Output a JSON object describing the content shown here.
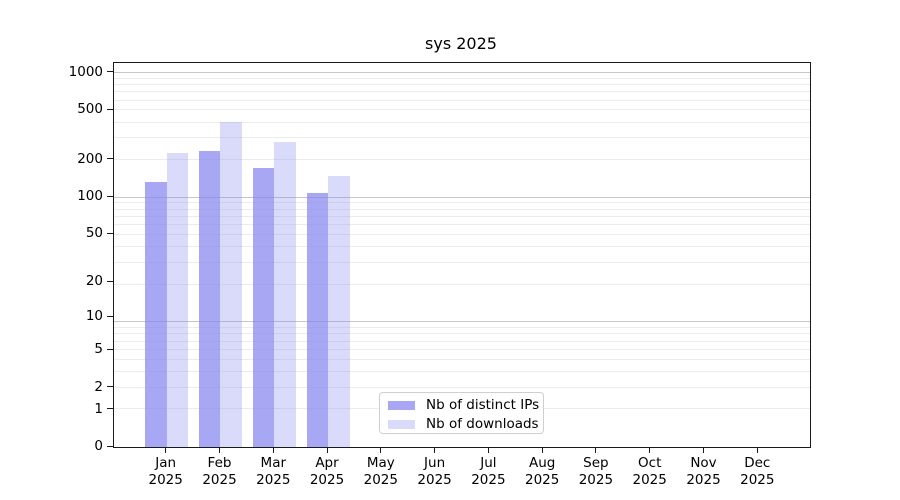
{
  "chart_data": {
    "type": "bar",
    "title": "sys 2025",
    "scale": "log1p",
    "categories": [
      [
        "Jan",
        "2025"
      ],
      [
        "Feb",
        "2025"
      ],
      [
        "Mar",
        "2025"
      ],
      [
        "Apr",
        "2025"
      ],
      [
        "May",
        "2025"
      ],
      [
        "Jun",
        "2025"
      ],
      [
        "Jul",
        "2025"
      ],
      [
        "Aug",
        "2025"
      ],
      [
        "Sep",
        "2025"
      ],
      [
        "Oct",
        "2025"
      ],
      [
        "Nov",
        "2025"
      ],
      [
        "Dec",
        "2025"
      ]
    ],
    "series": [
      {
        "name": "Nb of distinct IPs",
        "values": [
          132,
          234,
          172,
          109,
          null,
          null,
          null,
          null,
          null,
          null,
          null,
          null
        ]
      },
      {
        "name": "Nb of downloads",
        "values": [
          228,
          404,
          279,
          148,
          null,
          null,
          null,
          null,
          null,
          null,
          null,
          null
        ]
      }
    ],
    "yticks": [
      0,
      1,
      2,
      5,
      10,
      20,
      50,
      100,
      200,
      500,
      1000
    ],
    "ylim": [
      0,
      1200
    ],
    "xlabel": "",
    "ylabel": "",
    "grid": true,
    "legend_position": "lower center inside plot"
  },
  "colors": {
    "bar_distinct_ips": "rgba(133,133,240,0.72)",
    "bar_downloads": "rgba(133,133,240,0.30)",
    "grid_major": "#c6c6c6",
    "grid_minor": "#ececec",
    "axis": "#1a1a1a",
    "text": "#000000",
    "legend_border": "#cfcfcf"
  }
}
